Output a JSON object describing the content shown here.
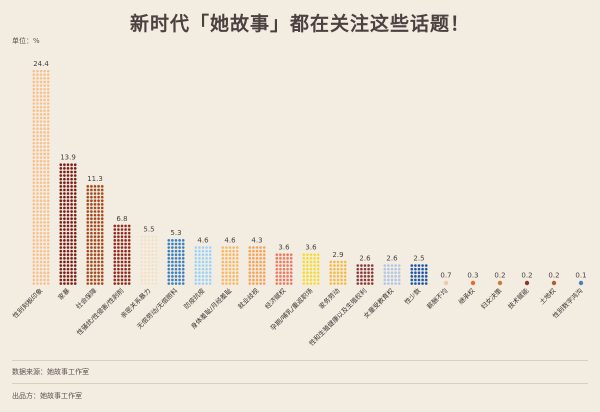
{
  "chart_data": {
    "type": "bar",
    "title": "新时代「她故事」都在关注这些话题！",
    "unit": "单位：%",
    "categories": [
      "性别刻板印象",
      "家暴",
      "社会保障",
      "性骚扰/性侵害/性剥削",
      "亲密关系暴力",
      "无偿劳动/无偿照料",
      "防疫抗疫",
      "身体羞耻/月经羞耻",
      "就业歧视",
      "经济赋权",
      "孕期/哺乳/重返职场",
      "家务劳动",
      "性和生殖健康以及生殖权利",
      "女童受教育权",
      "性少数",
      "薪酬不均",
      "继承权",
      "妇女决策",
      "技术赋能",
      "土地权",
      "性别数字鸿沟"
    ],
    "values": [
      24.4,
      13.9,
      11.3,
      6.8,
      5.5,
      5.3,
      4.6,
      4.6,
      4.3,
      3.6,
      3.6,
      2.9,
      2.6,
      2.6,
      2.5,
      0.7,
      0.3,
      0.2,
      0.2,
      0.2,
      0.1
    ],
    "value_labels": [
      "24.4",
      "13.9",
      "11.3",
      "6.8",
      "5.5",
      "5.3",
      "4.6",
      "4.6",
      "4.3",
      "3.6",
      "3.6",
      "2.9",
      "2.6",
      "2.6",
      "2.5",
      "0.7",
      "0.3",
      "0.2",
      "0.2",
      "0.2",
      "0.1"
    ],
    "colors": [
      "#f5c08e",
      "#7a1e14",
      "#a04a1c",
      "#8e2a1c",
      "#f1dfc6",
      "#3d7eb8",
      "#9fd2ef",
      "#f4b867",
      "#f3a25a",
      "#ea7a5e",
      "#f2d93a",
      "#f2b94a",
      "#8a3a3c",
      "#b5c4de",
      "#1f56a0",
      "#f0c9a6",
      "#e86d2d",
      "#c97b3a",
      "#8b3a1e",
      "#b05a40",
      "#4a7fc0"
    ],
    "grid": false,
    "legend": "none"
  },
  "footer": {
    "source": "数据来源：她故事工作室",
    "publisher": "出品方：她故事工作室"
  }
}
